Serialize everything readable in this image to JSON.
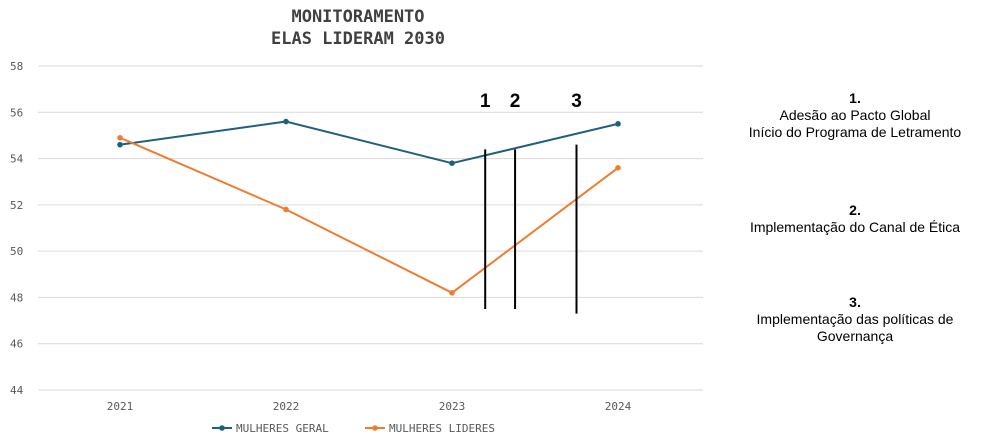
{
  "chart_data": {
    "type": "line",
    "title": [
      "MONITORAMENTO",
      "ELAS LIDERAM 2030"
    ],
    "categories": [
      "2021",
      "2022",
      "2023",
      "2024"
    ],
    "yticks": [
      44,
      46,
      48,
      50,
      52,
      54,
      56,
      58
    ],
    "ylim": [
      44,
      58
    ],
    "grid": true,
    "legend_position": "bottom",
    "series": [
      {
        "name": "MULHERES GERAL",
        "color": "#1f5f7f",
        "values": [
          54.6,
          55.6,
          53.8,
          55.5
        ]
      },
      {
        "name": "MULHERES LIDERES",
        "color": "#ed7d31",
        "values": [
          54.9,
          51.8,
          48.2,
          53.6
        ]
      }
    ],
    "event_markers": [
      {
        "label": "1",
        "x": 2023.2,
        "y_range": [
          47.5,
          54.4
        ]
      },
      {
        "label": "2",
        "x": 2023.38,
        "y_range": [
          47.5,
          54.4
        ]
      },
      {
        "label": "3",
        "x": 2023.75,
        "y_range": [
          47.3,
          54.6
        ]
      }
    ]
  },
  "notes": [
    {
      "num": "1.",
      "lines": [
        "Adesão ao Pacto Global",
        "Início do Programa de Letramento"
      ]
    },
    {
      "num": "2.",
      "lines": [
        "Implementação do Canal de Ética"
      ]
    },
    {
      "num": "3.",
      "lines": [
        "Implementação das políticas de",
        "Governança"
      ]
    }
  ]
}
